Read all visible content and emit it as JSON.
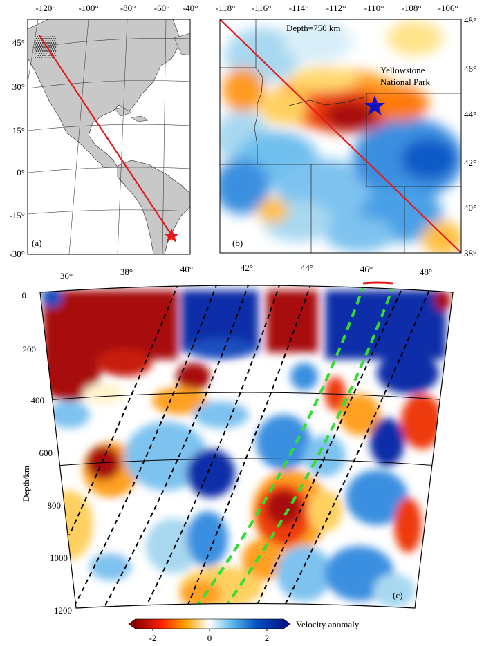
{
  "panel_a": {
    "label": "(a)",
    "top_lon_ticks": [
      "-120°",
      "-100°",
      "-80°",
      "-60°",
      "-40°"
    ],
    "left_lat_ticks": [
      "45°",
      "30°",
      "15°",
      "0°",
      "-15°",
      "-30°"
    ],
    "colors": {
      "land": "#c8c8c8",
      "ocean": "#ffffff",
      "profile": "#e41a1c",
      "star": "#e41a1c"
    }
  },
  "panel_b": {
    "label": "(b)",
    "depth_label": "Depth=750 km",
    "park_label_line1": "Yellowstone",
    "park_label_line2": "National Park",
    "top_lon_ticks": [
      "-118°",
      "-116°",
      "-114°",
      "-112°",
      "-110°",
      "-108°",
      "-106°"
    ],
    "right_lat_ticks": [
      "48°",
      "46°",
      "44°",
      "42°",
      "40°",
      "38°"
    ],
    "star_color": "#1010c8"
  },
  "panel_c": {
    "label": "(c)",
    "top_ticks": [
      "36°",
      "38°",
      "40°",
      "42°",
      "44°",
      "46°",
      "48°"
    ],
    "depth_ticks": [
      "0",
      "200",
      "400",
      "600",
      "800",
      "1000",
      "1200"
    ],
    "ylabel": "Depth/km",
    "discontinuity_depths_km": [
      410,
      660
    ],
    "plume_color": "#33dd33"
  },
  "colorbar": {
    "label": "Velocity anomaly",
    "ticks": [
      "-2",
      "0",
      "2"
    ],
    "range": [
      -2.5,
      2.5
    ],
    "colors": [
      "#8b0000",
      "#ff3300",
      "#ffa500",
      "#ffffff",
      "#5ab4e8",
      "#0050c0",
      "#001a8c"
    ]
  }
}
